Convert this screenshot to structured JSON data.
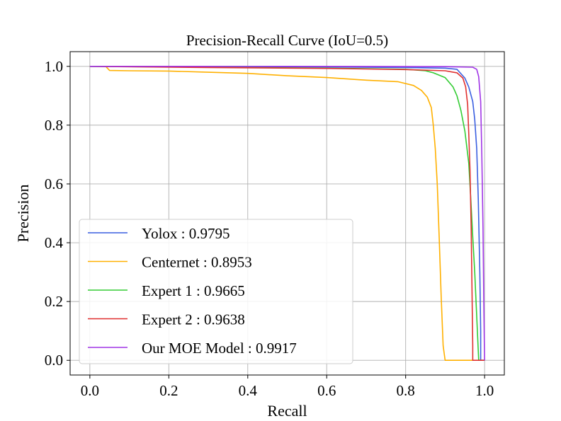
{
  "chart_data": {
    "type": "line",
    "title": "Precision-Recall Curve (IoU=0.5)",
    "xlabel": "Recall",
    "ylabel": "Precision",
    "xlim": [
      -0.05,
      1.05
    ],
    "ylim": [
      -0.05,
      1.05
    ],
    "xticks": [
      0.0,
      0.2,
      0.4,
      0.6,
      0.8,
      1.0
    ],
    "yticks": [
      0.0,
      0.2,
      0.4,
      0.6,
      0.8,
      1.0
    ],
    "xtick_labels": [
      "0.0",
      "0.2",
      "0.4",
      "0.6",
      "0.8",
      "1.0"
    ],
    "ytick_labels": [
      "0.0",
      "0.2",
      "0.4",
      "0.6",
      "0.8",
      "1.0"
    ],
    "grid": true,
    "legend_position": "lower-left",
    "series": [
      {
        "name": "Yolox : 0.9795",
        "color": "#3a5fe0",
        "points": [
          [
            0.0,
            1.0
          ],
          [
            0.3,
            0.999
          ],
          [
            0.6,
            0.998
          ],
          [
            0.8,
            0.996
          ],
          [
            0.9,
            0.994
          ],
          [
            0.93,
            0.99
          ],
          [
            0.95,
            0.96
          ],
          [
            0.96,
            0.93
          ],
          [
            0.97,
            0.88
          ],
          [
            0.975,
            0.82
          ],
          [
            0.98,
            0.72
          ],
          [
            0.984,
            0.55
          ],
          [
            0.988,
            0.3
          ],
          [
            0.99,
            0.1
          ],
          [
            0.99,
            0.0
          ],
          [
            1.0,
            0.0
          ]
        ]
      },
      {
        "name": "Centernet : 0.8953",
        "color": "#ffb000",
        "points": [
          [
            0.0,
            1.0
          ],
          [
            0.04,
            1.0
          ],
          [
            0.05,
            0.986
          ],
          [
            0.1,
            0.985
          ],
          [
            0.2,
            0.984
          ],
          [
            0.3,
            0.98
          ],
          [
            0.4,
            0.976
          ],
          [
            0.5,
            0.968
          ],
          [
            0.6,
            0.962
          ],
          [
            0.7,
            0.953
          ],
          [
            0.78,
            0.948
          ],
          [
            0.82,
            0.935
          ],
          [
            0.84,
            0.918
          ],
          [
            0.855,
            0.895
          ],
          [
            0.865,
            0.86
          ],
          [
            0.87,
            0.8
          ],
          [
            0.875,
            0.72
          ],
          [
            0.88,
            0.6
          ],
          [
            0.885,
            0.42
          ],
          [
            0.89,
            0.22
          ],
          [
            0.895,
            0.05
          ],
          [
            0.9,
            0.0
          ],
          [
            0.97,
            0.0
          ]
        ]
      },
      {
        "name": "Expert 1 : 0.9665",
        "color": "#33cc33",
        "points": [
          [
            0.0,
            1.0
          ],
          [
            0.3,
            0.997
          ],
          [
            0.6,
            0.994
          ],
          [
            0.8,
            0.99
          ],
          [
            0.85,
            0.985
          ],
          [
            0.87,
            0.978
          ],
          [
            0.9,
            0.962
          ],
          [
            0.92,
            0.93
          ],
          [
            0.93,
            0.9
          ],
          [
            0.94,
            0.85
          ],
          [
            0.95,
            0.78
          ],
          [
            0.96,
            0.67
          ],
          [
            0.965,
            0.55
          ],
          [
            0.97,
            0.42
          ],
          [
            0.975,
            0.3
          ],
          [
            0.98,
            0.15
          ],
          [
            0.985,
            0.0
          ],
          [
            1.0,
            0.0
          ]
        ]
      },
      {
        "name": "Expert 2 : 0.9638",
        "color": "#e03030",
        "points": [
          [
            0.0,
            1.0
          ],
          [
            0.3,
            0.996
          ],
          [
            0.6,
            0.993
          ],
          [
            0.8,
            0.989
          ],
          [
            0.9,
            0.985
          ],
          [
            0.93,
            0.978
          ],
          [
            0.945,
            0.96
          ],
          [
            0.952,
            0.93
          ],
          [
            0.957,
            0.87
          ],
          [
            0.96,
            0.77
          ],
          [
            0.963,
            0.65
          ],
          [
            0.966,
            0.45
          ],
          [
            0.968,
            0.25
          ],
          [
            0.97,
            0.05
          ],
          [
            0.97,
            0.0
          ],
          [
            1.0,
            0.0
          ]
        ]
      },
      {
        "name": "Our MOE Model : 0.9917",
        "color": "#a035e6",
        "points": [
          [
            0.0,
            1.0
          ],
          [
            0.5,
            1.0
          ],
          [
            0.9,
            0.999
          ],
          [
            0.97,
            0.997
          ],
          [
            0.98,
            0.99
          ],
          [
            0.985,
            0.965
          ],
          [
            0.99,
            0.88
          ],
          [
            0.993,
            0.7
          ],
          [
            0.996,
            0.45
          ],
          [
            0.998,
            0.2
          ],
          [
            1.0,
            0.0
          ]
        ]
      }
    ]
  }
}
